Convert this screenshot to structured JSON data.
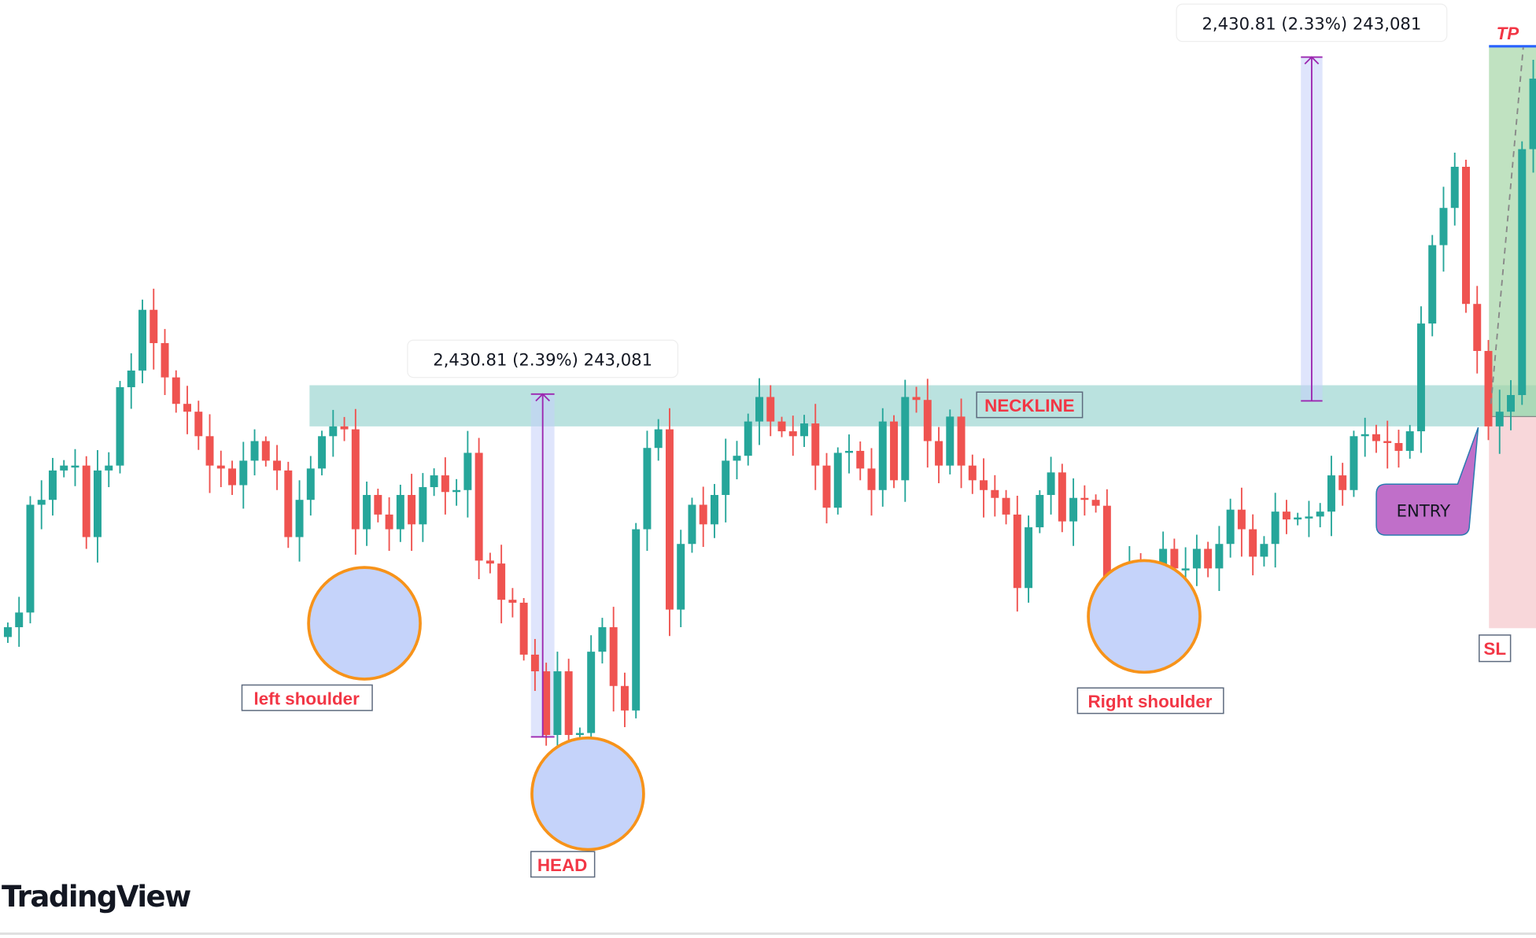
{
  "chart_data": {
    "type": "candlestick",
    "first_open": 305,
    "close": [
      315,
      330,
      440,
      445,
      475,
      480,
      480,
      407,
      475,
      480,
      560,
      577,
      639,
      605,
      570,
      543,
      535,
      510,
      480,
      477,
      460,
      485,
      505,
      485,
      475,
      407,
      445,
      477,
      510,
      520,
      517,
      415,
      450,
      430,
      415,
      450,
      420,
      458,
      470,
      453,
      455,
      493,
      383,
      380,
      343,
      340,
      287,
      270,
      205,
      270,
      205,
      207,
      290,
      315,
      255,
      230,
      415,
      498,
      517,
      333,
      400,
      440,
      420,
      450,
      485,
      490,
      525,
      550,
      525,
      515,
      510,
      523,
      480,
      437,
      493,
      495,
      477,
      455,
      525,
      465,
      550,
      547,
      505,
      480,
      530,
      480,
      465,
      455,
      447,
      430,
      355,
      417,
      450,
      473,
      423,
      447,
      445,
      439,
      365,
      363,
      377,
      375,
      340,
      395,
      375,
      375,
      395,
      375,
      400,
      435,
      415,
      387,
      400,
      433,
      425,
      427,
      428,
      433,
      470,
      455,
      510,
      512,
      505,
      503,
      495,
      515,
      625,
      705,
      743,
      785,
      645,
      597,
      520,
      535,
      552,
      803,
      875
    ],
    "colors": {
      "up": "#26a69a",
      "down": "#ef5350"
    },
    "grid": false
  },
  "annotations": {
    "neckline": "NECKLINE",
    "left_shoulder": "left shoulder",
    "head": "HEAD",
    "right_shoulder": "Right shoulder",
    "measure_1": "2,430.81 (2.39%) 243,081",
    "measure_2": "2,430.81 (2.33%) 243,081",
    "tp": "TP",
    "sl": "SL",
    "entry": "ENTRY"
  },
  "colors": {
    "neckline_zone": "#b2dfdb",
    "circle_fill": "#c5d3fa",
    "circle_stroke": "#f7931a",
    "measure": "#9c27b0",
    "profit_zone": "#c8e6c9",
    "loss_zone": "#f8d7da",
    "entry_fill": "#c06fc9",
    "tp_line": "#2962ff"
  },
  "branding": {
    "logo": "TradingView"
  }
}
